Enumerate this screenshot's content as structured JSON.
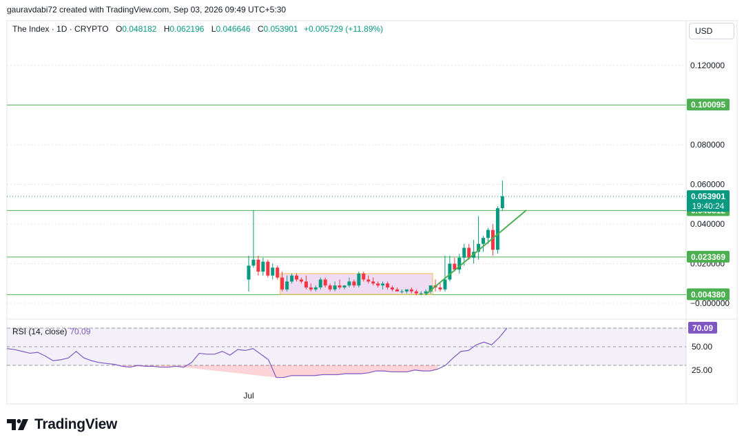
{
  "header": {
    "created_by": "gauravdabi72 created with TradingView.com, Sep 03, 2026 09:49 UTC+5:30"
  },
  "legend": {
    "symbol": "The Index · 1D · CRYPTO",
    "open_label": "O",
    "open": "0.048182",
    "high_label": "H",
    "high": "0.062196",
    "low_label": "L",
    "low": "0.046646",
    "close_label": "C",
    "close": "0.053901",
    "change": "+0.005729 (+11.89%)"
  },
  "currency_button": "USD",
  "colors": {
    "up": "#089981",
    "down": "#f23645",
    "level_line": "#4caf50",
    "rsi": "#7e57c2",
    "range_box_fill": "#e1bee7",
    "range_box_border": "#f0c24c"
  },
  "chart_data": {
    "type": "candlestick",
    "interval": "1D",
    "x_tick_labels": [
      "Jul"
    ],
    "y_tick_labels": [
      "0.120000",
      "0.080000",
      "0.060000",
      "0.040000",
      "0.020000",
      "−0.000000"
    ],
    "ylim": [
      -0.003,
      0.14
    ],
    "horizontal_levels": [
      {
        "label": "0.100095",
        "value": 0.100095
      },
      {
        "label": "0.046812",
        "value": 0.046812
      },
      {
        "label": "0.023369",
        "value": 0.023369
      },
      {
        "label": "0.004380",
        "value": 0.00438
      }
    ],
    "last_price": {
      "label": "0.053901",
      "value": 0.053901,
      "countdown": "19:40:24"
    },
    "candles": [
      [
        0.012,
        0.024,
        0.006,
        0.019
      ],
      [
        0.019,
        0.047,
        0.018,
        0.022
      ],
      [
        0.022,
        0.024,
        0.014,
        0.016
      ],
      [
        0.016,
        0.023,
        0.014,
        0.021
      ],
      [
        0.021,
        0.022,
        0.013,
        0.014
      ],
      [
        0.014,
        0.02,
        0.012,
        0.018
      ],
      [
        0.018,
        0.019,
        0.012,
        0.013
      ],
      [
        0.013,
        0.016,
        0.006,
        0.007
      ],
      [
        0.007,
        0.014,
        0.006,
        0.011
      ],
      [
        0.011,
        0.015,
        0.01,
        0.014
      ],
      [
        0.014,
        0.015,
        0.011,
        0.012
      ],
      [
        0.012,
        0.013,
        0.01,
        0.011
      ],
      [
        0.011,
        0.014,
        0.007,
        0.008
      ],
      [
        0.008,
        0.01,
        0.006,
        0.007
      ],
      [
        0.007,
        0.009,
        0.006,
        0.008
      ],
      [
        0.008,
        0.013,
        0.007,
        0.012
      ],
      [
        0.012,
        0.013,
        0.008,
        0.009
      ],
      [
        0.009,
        0.01,
        0.006,
        0.007
      ],
      [
        0.007,
        0.011,
        0.006,
        0.009
      ],
      [
        0.009,
        0.012,
        0.007,
        0.008
      ],
      [
        0.008,
        0.009,
        0.007,
        0.009
      ],
      [
        0.009,
        0.013,
        0.008,
        0.011
      ],
      [
        0.011,
        0.012,
        0.008,
        0.009
      ],
      [
        0.009,
        0.016,
        0.008,
        0.015
      ],
      [
        0.015,
        0.016,
        0.011,
        0.012
      ],
      [
        0.012,
        0.014,
        0.01,
        0.011
      ],
      [
        0.011,
        0.013,
        0.009,
        0.01
      ],
      [
        0.01,
        0.011,
        0.008,
        0.009
      ],
      [
        0.009,
        0.011,
        0.007,
        0.01
      ],
      [
        0.01,
        0.011,
        0.007,
        0.008
      ],
      [
        0.008,
        0.009,
        0.006,
        0.007
      ],
      [
        0.007,
        0.008,
        0.006,
        0.006
      ],
      [
        0.006,
        0.007,
        0.005,
        0.006
      ],
      [
        0.006,
        0.007,
        0.005,
        0.007
      ],
      [
        0.007,
        0.008,
        0.005,
        0.006
      ],
      [
        0.006,
        0.007,
        0.004,
        0.005
      ],
      [
        0.005,
        0.006,
        0.004,
        0.005
      ],
      [
        0.005,
        0.007,
        0.004,
        0.006
      ],
      [
        0.006,
        0.009,
        0.005,
        0.009
      ],
      [
        0.009,
        0.012,
        0.006,
        0.008
      ],
      [
        0.008,
        0.01,
        0.006,
        0.007
      ],
      [
        0.007,
        0.024,
        0.006,
        0.012
      ],
      [
        0.012,
        0.024,
        0.011,
        0.02
      ],
      [
        0.02,
        0.023,
        0.016,
        0.017
      ],
      [
        0.017,
        0.025,
        0.015,
        0.023
      ],
      [
        0.023,
        0.03,
        0.019,
        0.028
      ],
      [
        0.028,
        0.03,
        0.022,
        0.023
      ],
      [
        0.023,
        0.032,
        0.02,
        0.026
      ],
      [
        0.026,
        0.044,
        0.022,
        0.03
      ],
      [
        0.03,
        0.034,
        0.026,
        0.033
      ],
      [
        0.033,
        0.038,
        0.03,
        0.037
      ],
      [
        0.037,
        0.04,
        0.024,
        0.027
      ],
      [
        0.027,
        0.049,
        0.025,
        0.048
      ],
      [
        0.048,
        0.062,
        0.047,
        0.054
      ]
    ],
    "range_box": {
      "start_index": 7,
      "end_index": 38,
      "top": 0.015,
      "bottom": 0.0045
    },
    "trendline": {
      "from": {
        "index": 37,
        "value": 0.0045
      },
      "to": {
        "index": 58,
        "value": 0.047
      }
    },
    "rsi": {
      "title": "RSI (14, close)",
      "value_label": "70.09",
      "value": 70.09,
      "levels": [
        70,
        50,
        30
      ],
      "tick_labels": [
        "50.00",
        "25.00"
      ],
      "ylim": [
        5,
        75
      ],
      "values": [
        48,
        47,
        45,
        43,
        44,
        40,
        35,
        36,
        38,
        45,
        38,
        35,
        33,
        32,
        31,
        29,
        28,
        30,
        29,
        29,
        28,
        28,
        29,
        28,
        33,
        43,
        42,
        42,
        45,
        41,
        47,
        46,
        48,
        42,
        36,
        17,
        17,
        19,
        19,
        19,
        19,
        20,
        20,
        20,
        21,
        21,
        21,
        22,
        24,
        24,
        23,
        23,
        23,
        25,
        24,
        24,
        26,
        30,
        38,
        45,
        46,
        52,
        55,
        52,
        60,
        70.09
      ]
    }
  }
}
